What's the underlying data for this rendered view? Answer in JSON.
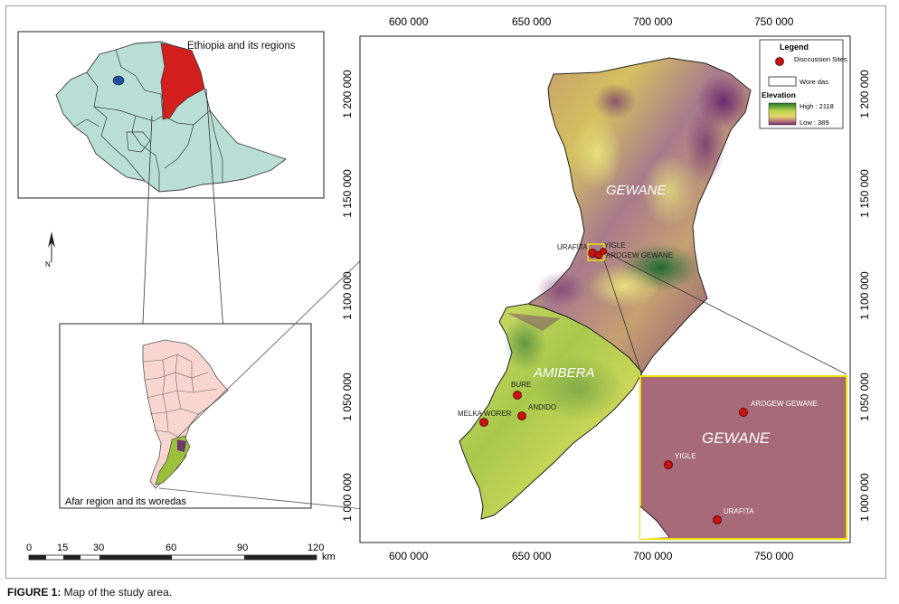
{
  "inset_top_title": "Ethiopia and its regions",
  "inset_bottom_title": "Afar region and its woredas",
  "north_letter": "N",
  "scale_bar": {
    "ticks": [
      "0",
      "15",
      "30",
      "60",
      "90",
      "120"
    ],
    "unit": "km"
  },
  "legend": {
    "title": "Legend",
    "discussion_label": "Disccussion Sites",
    "woredas_label": "Wore das",
    "elevation_label": "Elevation",
    "high_label": "High : 2118",
    "low_label": "Low : 389"
  },
  "x_ticks": [
    "600 000",
    "650 000",
    "700 000",
    "750 000"
  ],
  "y_ticks": [
    "1 200 000",
    "1 150 000",
    "1 100 000",
    "1 050 000",
    "1 000 000"
  ],
  "regions": {
    "gewane": "GEWANE",
    "amibera": "AMIBERA",
    "zoom_gewane": "GEWANE"
  },
  "sites": {
    "urafita": "URAFITA",
    "yigle": "YIGLE",
    "arogew": "AROGEW GEWANE",
    "bure": "BURE",
    "andido": "ANDIDO",
    "melka": "MELKA WORER"
  },
  "zoom_sites": {
    "arogew": "AROGEW GEWANE",
    "yigle": "YIGLE",
    "urafita": "URAFITA"
  },
  "caption_label": "FIGURE 1:",
  "caption_text": " Map of the study area.",
  "colors": {
    "ethiopia_fill": "#b9ded6",
    "afar_highlight": "#d41f1f",
    "afar_fill": "#f7d6cf",
    "zoom_fill": "#a66a78",
    "zoom_border": "#ece000",
    "site": "#cc1111"
  }
}
